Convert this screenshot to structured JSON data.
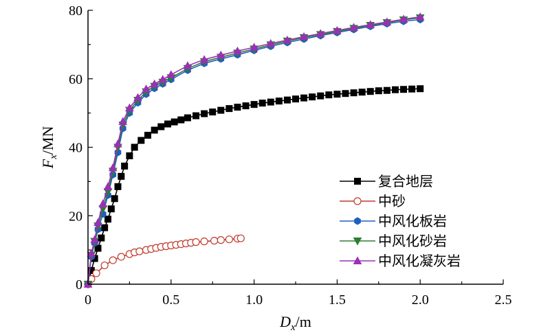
{
  "chart_data": {
    "type": "line",
    "title": "",
    "xlabel": {
      "var": "D",
      "sub": "x",
      "unit": "/m"
    },
    "ylabel": {
      "var": "F",
      "sub": "x",
      "unit": "/MN"
    },
    "xlim": [
      0,
      2.5
    ],
    "ylim": [
      0,
      80
    ],
    "xticks": [
      0,
      0.5,
      1.0,
      1.5,
      2.0,
      2.5
    ],
    "xtick_labels": [
      "0",
      "0.5",
      "1.0",
      "1.5",
      "2.0",
      "2.5"
    ],
    "yticks": [
      0,
      20,
      40,
      60,
      80
    ],
    "ytick_labels": [
      "0",
      "20",
      "40",
      "60",
      "80"
    ],
    "grid": false,
    "legend_position": "center-right",
    "series": [
      {
        "name": "复合地层",
        "color": "#000000",
        "marker": "square",
        "fill": "filled",
        "x": [
          0,
          0.02,
          0.04,
          0.06,
          0.08,
          0.1,
          0.12,
          0.14,
          0.16,
          0.18,
          0.2,
          0.22,
          0.25,
          0.28,
          0.32,
          0.36,
          0.4,
          0.44,
          0.48,
          0.52,
          0.56,
          0.6,
          0.65,
          0.7,
          0.75,
          0.8,
          0.85,
          0.9,
          0.95,
          1.0,
          1.05,
          1.1,
          1.15,
          1.2,
          1.25,
          1.3,
          1.35,
          1.4,
          1.45,
          1.5,
          1.55,
          1.6,
          1.65,
          1.7,
          1.75,
          1.8,
          1.85,
          1.9,
          1.95,
          2.0
        ],
        "y": [
          0,
          4.0,
          7.5,
          10.5,
          13.5,
          16.5,
          19.0,
          22.0,
          25.0,
          28.5,
          31.5,
          34.5,
          37.5,
          40.0,
          42.0,
          43.5,
          45.0,
          46.0,
          46.8,
          47.4,
          48.0,
          48.6,
          49.2,
          49.8,
          50.3,
          50.8,
          51.3,
          51.7,
          52.1,
          52.5,
          52.9,
          53.2,
          53.5,
          53.8,
          54.1,
          54.4,
          54.7,
          55.0,
          55.3,
          55.5,
          55.7,
          55.9,
          56.1,
          56.3,
          56.5,
          56.6,
          56.8,
          56.9,
          57.0,
          57.1
        ]
      },
      {
        "name": "中砂",
        "color": "#c0392b",
        "marker": "circle",
        "fill": "hollow",
        "x": [
          0,
          0.02,
          0.05,
          0.1,
          0.15,
          0.2,
          0.25,
          0.28,
          0.31,
          0.35,
          0.38,
          0.41,
          0.44,
          0.47,
          0.5,
          0.53,
          0.56,
          0.59,
          0.62,
          0.65,
          0.7,
          0.76,
          0.8,
          0.85,
          0.9,
          0.92
        ],
        "y": [
          0,
          1.5,
          3.2,
          5.5,
          7.0,
          8.0,
          8.8,
          9.3,
          9.6,
          10.0,
          10.3,
          10.6,
          10.9,
          11.1,
          11.3,
          11.5,
          11.7,
          11.9,
          12.1,
          12.3,
          12.5,
          12.7,
          12.9,
          13.1,
          13.3,
          13.4
        ]
      },
      {
        "name": "中风化板岩",
        "color": "#1f5fbf",
        "marker": "hexagon",
        "fill": "filled",
        "x": [
          0,
          0.02,
          0.04,
          0.06,
          0.09,
          0.12,
          0.15,
          0.18,
          0.21,
          0.25,
          0.3,
          0.35,
          0.4,
          0.45,
          0.5,
          0.6,
          0.7,
          0.8,
          0.9,
          1.0,
          1.1,
          1.2,
          1.3,
          1.4,
          1.5,
          1.6,
          1.7,
          1.8,
          1.9,
          2.0
        ],
        "y": [
          0,
          8.0,
          12.0,
          16.0,
          20.5,
          26.0,
          32.0,
          38.5,
          45.5,
          50.0,
          53.0,
          55.5,
          57.2,
          58.5,
          59.8,
          62.5,
          64.5,
          65.8,
          67.0,
          68.3,
          69.5,
          70.6,
          71.6,
          72.6,
          73.5,
          74.4,
          75.3,
          76.1,
          76.8,
          77.3
        ]
      },
      {
        "name": "中风化砂岩",
        "color": "#2e7d32",
        "marker": "triangle-down",
        "fill": "filled",
        "x": [
          0,
          0.02,
          0.04,
          0.06,
          0.09,
          0.12,
          0.15,
          0.18,
          0.21,
          0.25,
          0.3,
          0.35,
          0.4,
          0.45,
          0.5,
          0.6,
          0.7,
          0.8,
          0.9,
          1.0,
          1.1,
          1.2,
          1.3,
          1.4,
          1.5,
          1.6,
          1.7,
          1.8,
          1.9,
          2.0
        ],
        "y": [
          0,
          8.5,
          12.5,
          17.0,
          22.0,
          27.0,
          33.0,
          40.0,
          46.5,
          50.8,
          53.7,
          56.2,
          57.8,
          59.0,
          60.3,
          63.0,
          65.0,
          66.3,
          67.5,
          68.7,
          69.9,
          71.0,
          72.0,
          72.9,
          73.8,
          74.7,
          75.6,
          76.4,
          77.2,
          77.8
        ]
      },
      {
        "name": "中风化凝灰岩",
        "color": "#9b30b5",
        "marker": "triangle-up",
        "fill": "filled",
        "x": [
          0,
          0.02,
          0.04,
          0.06,
          0.09,
          0.12,
          0.15,
          0.18,
          0.21,
          0.25,
          0.3,
          0.35,
          0.4,
          0.45,
          0.5,
          0.6,
          0.7,
          0.8,
          0.9,
          1.0,
          1.1,
          1.2,
          1.3,
          1.4,
          1.5,
          1.6,
          1.7,
          1.8,
          1.9,
          2.0
        ],
        "y": [
          0,
          9.0,
          13.0,
          18.0,
          23.5,
          28.5,
          34.0,
          41.0,
          47.5,
          51.5,
          54.5,
          57.0,
          58.5,
          59.8,
          61.2,
          63.8,
          65.6,
          66.9,
          68.1,
          69.2,
          70.3,
          71.3,
          72.3,
          73.2,
          74.1,
          75.0,
          75.8,
          76.6,
          77.4,
          78.1
        ]
      }
    ]
  }
}
